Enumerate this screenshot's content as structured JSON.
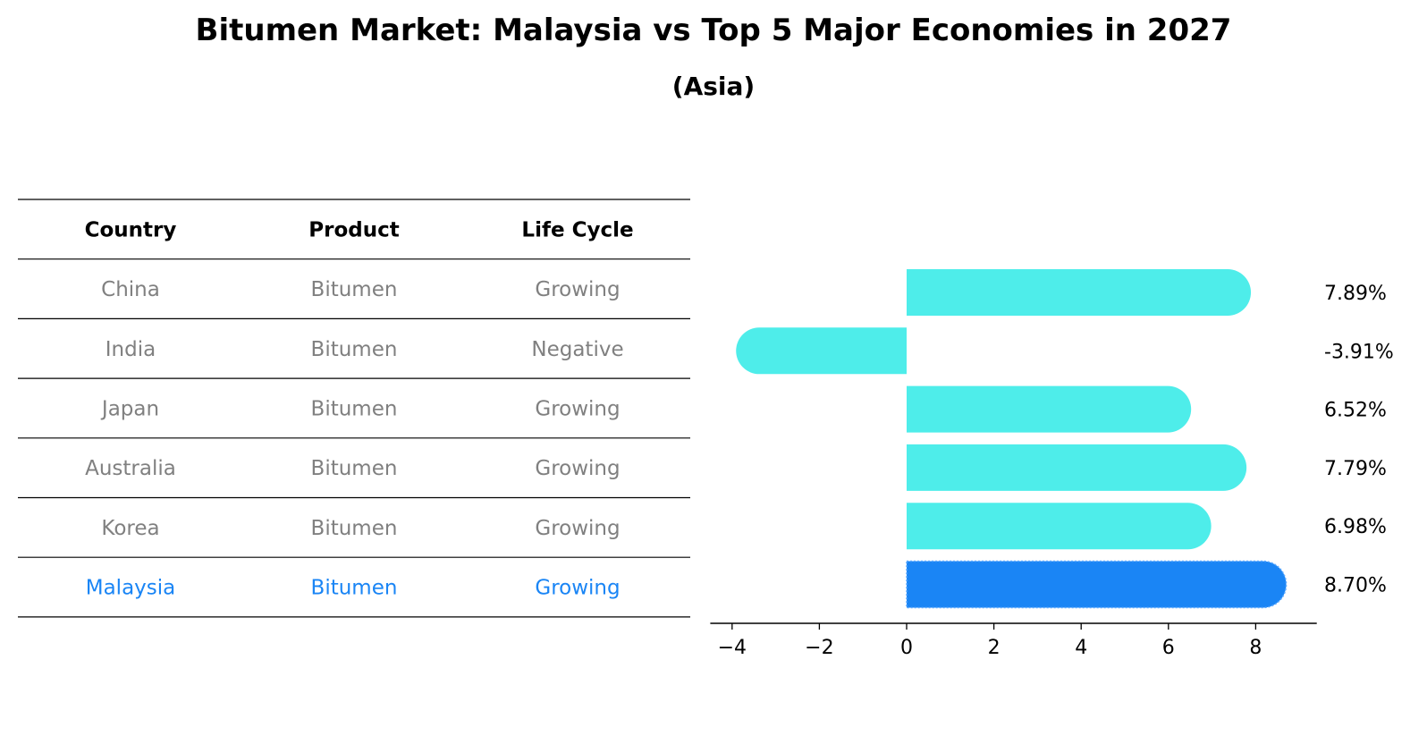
{
  "title": "Bitumen Market: Malaysia vs Top 5 Major Economies in 2027",
  "subtitle": "(Asia)",
  "table": {
    "headers": [
      "Country",
      "Product",
      "Life Cycle"
    ],
    "rows": [
      [
        "China",
        "Bitumen",
        "Growing"
      ],
      [
        "India",
        "Bitumen",
        "Negative"
      ],
      [
        "Japan",
        "Bitumen",
        "Growing"
      ],
      [
        "Australia",
        "Bitumen",
        "Growing"
      ],
      [
        "Korea",
        "Bitumen",
        "Growing"
      ],
      [
        "Malaysia",
        "Bitumen",
        "Growing"
      ]
    ],
    "highlight_row": 5
  },
  "colors": {
    "bar": "#4EEDEA",
    "highlight": "#1A85F5",
    "row_text": "#808080",
    "text": "#000000"
  },
  "chart_data": {
    "type": "bar",
    "orientation": "horizontal",
    "categories": [
      "China",
      "India",
      "Japan",
      "Australia",
      "Korea",
      "Malaysia"
    ],
    "values": [
      7.89,
      -3.91,
      6.52,
      7.79,
      6.98,
      8.7
    ],
    "value_labels": [
      "7.89%",
      "-3.91%",
      "6.52%",
      "7.79%",
      "6.98%",
      "8.70%"
    ],
    "highlight": "Malaysia",
    "xlim": [
      -4.5,
      9.4
    ],
    "xticks": [
      -4,
      -2,
      0,
      2,
      4,
      6,
      8
    ],
    "xtick_labels": [
      "−4",
      "−2",
      "0",
      "2",
      "4",
      "6",
      "8"
    ],
    "grid": false
  }
}
